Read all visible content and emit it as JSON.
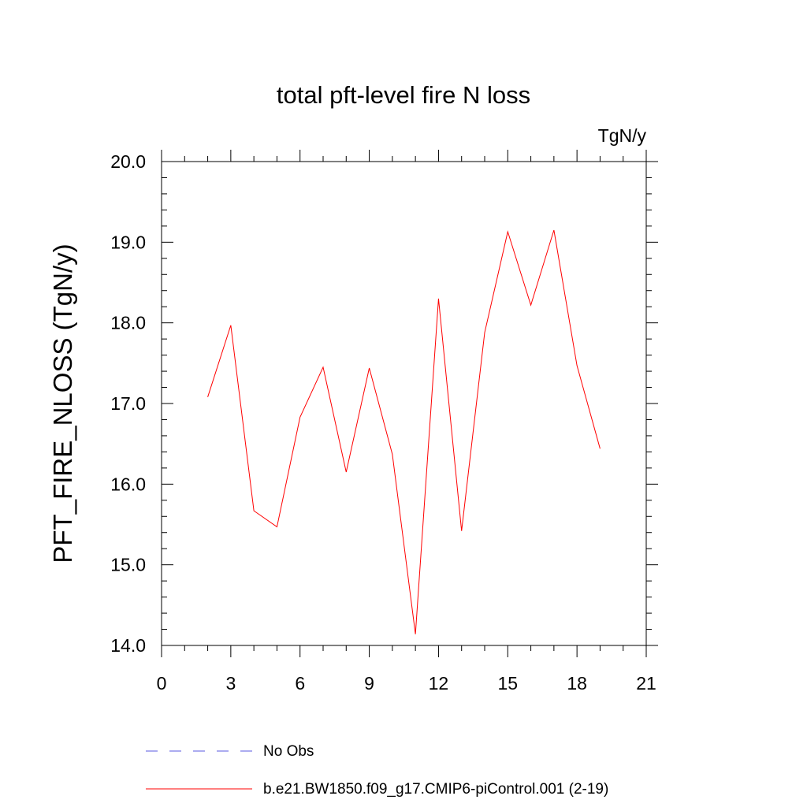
{
  "chart_data": {
    "type": "line",
    "title": "total pft-level fire N loss",
    "units": "TgN/y",
    "xlabel": "",
    "ylabel": "PFT_FIRE_NLOSS  (TgN/y)",
    "xlim": [
      0,
      21
    ],
    "ylim": [
      14.0,
      20.0
    ],
    "x_ticks": [
      0,
      3,
      6,
      9,
      12,
      15,
      18,
      21
    ],
    "x_tick_labels": [
      "0",
      "3",
      "6",
      "9",
      "12",
      "15",
      "18",
      "21"
    ],
    "y_ticks": [
      14.0,
      15.0,
      16.0,
      17.0,
      18.0,
      19.0,
      20.0
    ],
    "y_tick_labels": [
      "14.0",
      "15.0",
      "16.0",
      "17.0",
      "18.0",
      "19.0",
      "20.0"
    ],
    "series": [
      {
        "name": "b.e21.BW1850.f09_g17.CMIP6-piControl.001 (2-19)",
        "color": "#ff0000",
        "style": "solid",
        "x": [
          2,
          3,
          4,
          5,
          6,
          7,
          8,
          9,
          10,
          11,
          12,
          13,
          14,
          15,
          16,
          17,
          18,
          19
        ],
        "y": [
          17.08,
          17.97,
          15.67,
          15.47,
          16.83,
          17.45,
          16.15,
          17.44,
          16.37,
          14.14,
          18.3,
          15.42,
          17.88,
          19.13,
          18.22,
          19.15,
          17.47,
          16.44
        ]
      }
    ],
    "legend": [
      {
        "label": "No Obs",
        "color": "#5a5ae0",
        "style": "dashed"
      },
      {
        "label": "b.e21.BW1850.f09_g17.CMIP6-piControl.001 (2-19)",
        "color": "#ff0000",
        "style": "solid"
      }
    ],
    "grid": false
  }
}
